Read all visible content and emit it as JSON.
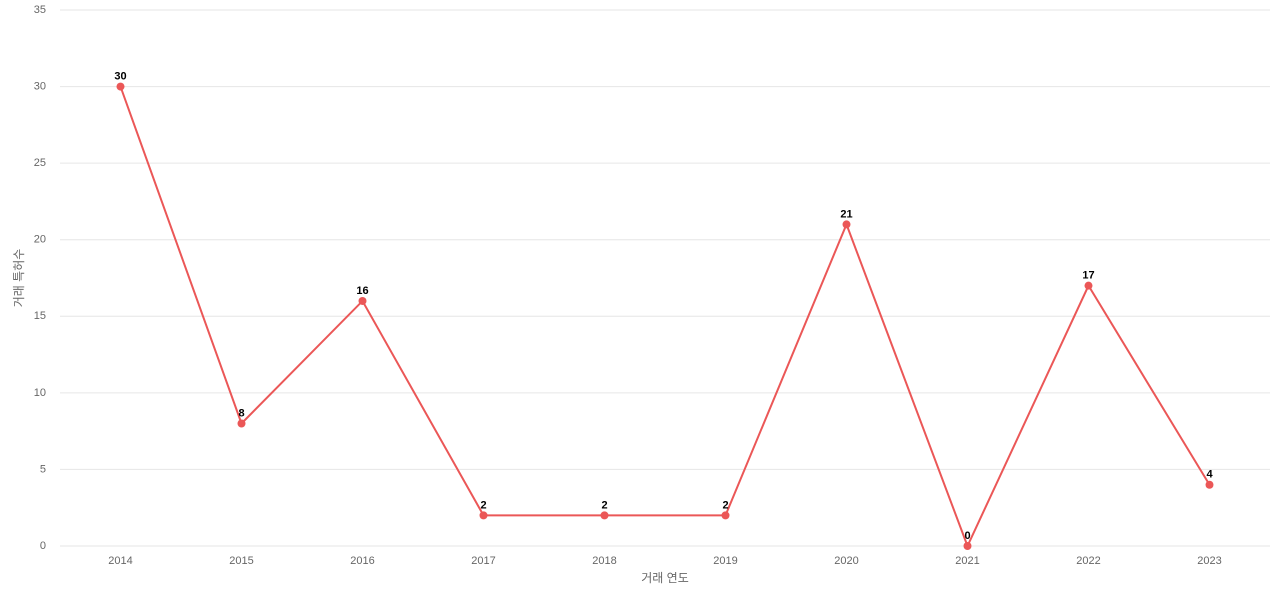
{
  "chart_data": {
    "type": "line",
    "x_label": "거래 연도",
    "y_label": "거래 특허수",
    "categories": [
      "2014",
      "2015",
      "2016",
      "2017",
      "2018",
      "2019",
      "2020",
      "2021",
      "2022",
      "2023"
    ],
    "series": [
      {
        "name": "거래 특허수",
        "color": "#eb5757",
        "values": [
          30,
          8,
          16,
          2,
          2,
          2,
          21,
          0,
          17,
          4
        ]
      }
    ],
    "ylim": [
      0,
      35
    ],
    "yticks": [
      0,
      5,
      10,
      15,
      20,
      25,
      30,
      35
    ],
    "grid": true
  }
}
